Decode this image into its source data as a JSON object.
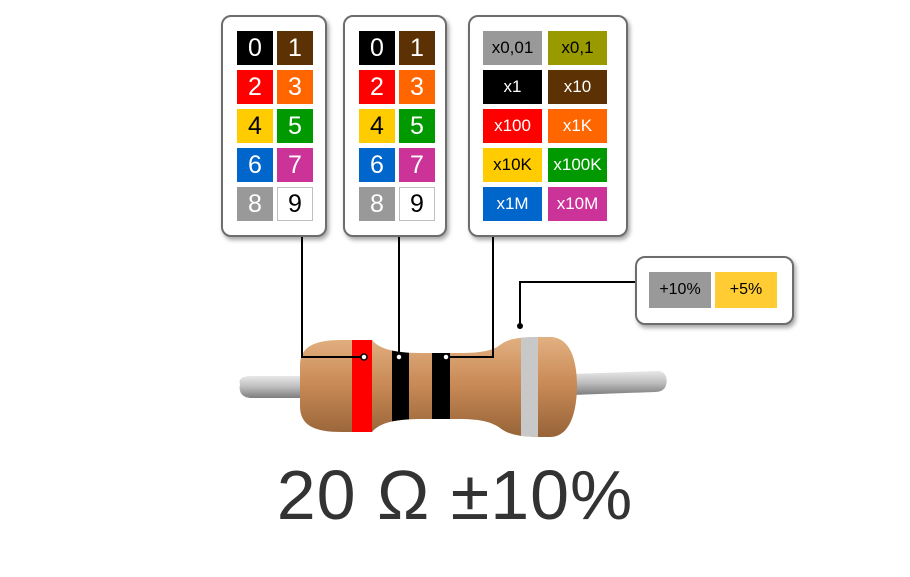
{
  "digit_panels": [
    {
      "cells": [
        {
          "label": "0",
          "color": "#000000",
          "text_color": "#ffffff"
        },
        {
          "label": "1",
          "color": "#5c3104",
          "text_color": "#ffffff"
        },
        {
          "label": "2",
          "color": "#ff0000",
          "text_color": "#ffffff"
        },
        {
          "label": "3",
          "color": "#ff6600",
          "text_color": "#ffffff"
        },
        {
          "label": "4",
          "color": "#ffcc00",
          "text_color": "#000000"
        },
        {
          "label": "5",
          "color": "#009900",
          "text_color": "#ffffff"
        },
        {
          "label": "6",
          "color": "#0066cc",
          "text_color": "#ffffff"
        },
        {
          "label": "7",
          "color": "#cc3399",
          "text_color": "#ffffff"
        },
        {
          "label": "8",
          "color": "#999999",
          "text_color": "#ffffff"
        },
        {
          "label": "9",
          "color": "#ffffff",
          "text_color": "#000000"
        }
      ]
    },
    {
      "cells": [
        {
          "label": "0",
          "color": "#000000",
          "text_color": "#ffffff"
        },
        {
          "label": "1",
          "color": "#5c3104",
          "text_color": "#ffffff"
        },
        {
          "label": "2",
          "color": "#ff0000",
          "text_color": "#ffffff"
        },
        {
          "label": "3",
          "color": "#ff6600",
          "text_color": "#ffffff"
        },
        {
          "label": "4",
          "color": "#ffcc00",
          "text_color": "#000000"
        },
        {
          "label": "5",
          "color": "#009900",
          "text_color": "#ffffff"
        },
        {
          "label": "6",
          "color": "#0066cc",
          "text_color": "#ffffff"
        },
        {
          "label": "7",
          "color": "#cc3399",
          "text_color": "#ffffff"
        },
        {
          "label": "8",
          "color": "#999999",
          "text_color": "#ffffff"
        },
        {
          "label": "9",
          "color": "#ffffff",
          "text_color": "#000000"
        }
      ]
    }
  ],
  "multiplier_panel": {
    "cells": [
      {
        "label": "x0,01",
        "color": "#999999",
        "text_color": "#000000"
      },
      {
        "label": "x0,1",
        "color": "#999900",
        "text_color": "#000000"
      },
      {
        "label": "x1",
        "color": "#000000",
        "text_color": "#ffffff"
      },
      {
        "label": "x10",
        "color": "#5c3104",
        "text_color": "#ffffff"
      },
      {
        "label": "x100",
        "color": "#ff0000",
        "text_color": "#ffffff"
      },
      {
        "label": "x1K",
        "color": "#ff6600",
        "text_color": "#ffffff"
      },
      {
        "label": "x10K",
        "color": "#ffcc00",
        "text_color": "#000000"
      },
      {
        "label": "x100K",
        "color": "#009900",
        "text_color": "#ffffff"
      },
      {
        "label": "x1M",
        "color": "#0066cc",
        "text_color": "#ffffff"
      },
      {
        "label": "x10M",
        "color": "#cc3399",
        "text_color": "#ffffff"
      }
    ]
  },
  "tolerance_panel": {
    "cells": [
      {
        "label": "+10%",
        "color": "#999999",
        "text_color": "#000000"
      },
      {
        "label": "+5%",
        "color": "#ffcc33",
        "text_color": "#000000"
      }
    ]
  },
  "resistor": {
    "body_color": "#c98a56",
    "lead_color": "#bdbdbd",
    "bands": [
      {
        "role": "digit-1",
        "color": "#ff0000"
      },
      {
        "role": "digit-2",
        "color": "#000000"
      },
      {
        "role": "multiplier",
        "color": "#000000"
      },
      {
        "role": "tolerance",
        "color": "#c8c8c8"
      }
    ]
  },
  "result": {
    "text": "20 Ω ±10%"
  }
}
